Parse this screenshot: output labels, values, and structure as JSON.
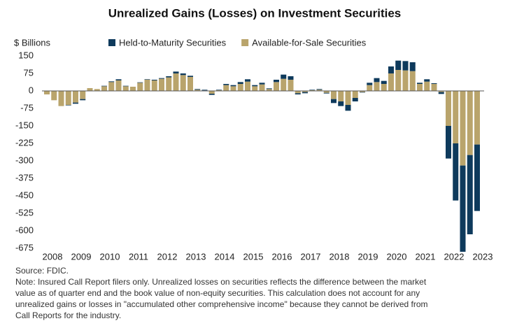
{
  "chart_data": {
    "type": "bar",
    "stacked": true,
    "title": "Unrealized Gains (Losses) on Investment Securities",
    "y_label": "$ Billions",
    "categories": [
      "2008",
      null,
      null,
      null,
      "2009",
      null,
      null,
      null,
      "2010",
      null,
      null,
      null,
      "2011",
      null,
      null,
      null,
      "2012",
      null,
      null,
      null,
      "2013",
      null,
      null,
      null,
      "2014",
      null,
      null,
      null,
      "2015",
      null,
      null,
      null,
      "2016",
      null,
      null,
      null,
      "2017",
      null,
      null,
      null,
      "2018",
      null,
      null,
      null,
      "2019",
      null,
      null,
      null,
      "2020",
      null,
      null,
      null,
      "2021",
      null,
      null,
      null,
      "2022",
      null,
      null,
      null,
      "2023"
    ],
    "series": [
      {
        "name": "Available-for-Sale Securities",
        "color": "#b9a46c",
        "values": [
          -15,
          -40,
          -65,
          -60,
          -50,
          -35,
          12,
          8,
          20,
          38,
          45,
          20,
          18,
          35,
          48,
          45,
          52,
          58,
          75,
          68,
          60,
          5,
          2,
          -12,
          3,
          25,
          20,
          30,
          40,
          20,
          28,
          8,
          38,
          52,
          48,
          -10,
          -5,
          3,
          5,
          -8,
          -35,
          -45,
          -60,
          -30,
          -5,
          25,
          38,
          30,
          75,
          90,
          88,
          85,
          30,
          40,
          30,
          -5,
          -150,
          -225,
          -320,
          -275,
          -230
        ]
      },
      {
        "name": "Held-to-Maturity Securities",
        "color": "#0e3a5c",
        "values": [
          0,
          0,
          0,
          -2,
          -5,
          -5,
          0,
          0,
          2,
          3,
          5,
          2,
          0,
          2,
          2,
          3,
          3,
          5,
          8,
          7,
          5,
          3,
          3,
          -5,
          2,
          5,
          5,
          8,
          10,
          5,
          7,
          3,
          10,
          18,
          15,
          -5,
          -5,
          2,
          3,
          -3,
          -17,
          -20,
          -25,
          -15,
          -2,
          10,
          17,
          13,
          30,
          40,
          40,
          38,
          5,
          10,
          3,
          -8,
          -140,
          -245,
          -370,
          -340,
          -285
        ]
      }
    ],
    "ylim": [
      -675,
      150
    ],
    "yticks": [
      150,
      75,
      0,
      -75,
      -150,
      -225,
      -300,
      -375,
      -450,
      -525,
      -600,
      -675
    ],
    "legend": "top",
    "notes": [
      "Source: FDIC.",
      "Note: Insured Call Report filers only. Unrealized losses on securities reflects the difference between the market",
      "value as of quarter end and the book value of non-equity securities. This calculation does not account for any",
      "unrealized gains or losses in \"accumulated other comprehensive income\" because they cannot be derived from",
      "Call Reports for the industry."
    ]
  }
}
